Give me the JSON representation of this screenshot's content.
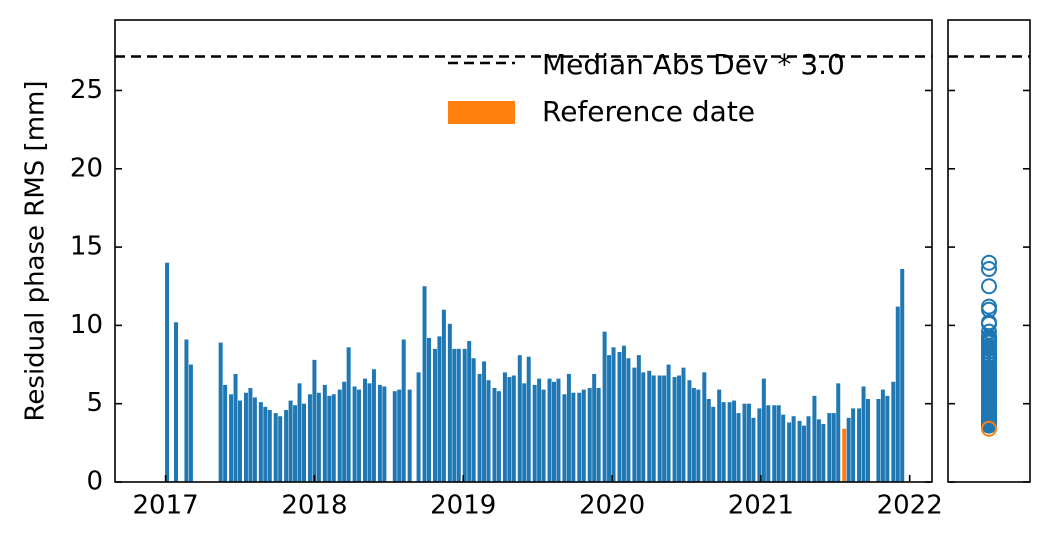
{
  "chart_data": {
    "type": "bar",
    "ylabel": "Residual phase RMS [mm]",
    "xlim": [
      2016.66,
      2022.15
    ],
    "xticks": [
      2017,
      2018,
      2019,
      2020,
      2021,
      2022
    ],
    "ylim": [
      0,
      29.5
    ],
    "yticks": [
      0,
      5,
      10,
      15,
      20,
      25
    ],
    "color": "#1f77b4",
    "x": [
      2017.01,
      2017.07,
      2017.14,
      2017.17,
      2017.37,
      2017.4,
      2017.44,
      2017.47,
      2017.5,
      2017.54,
      2017.57,
      2017.6,
      2017.64,
      2017.67,
      2017.7,
      2017.74,
      2017.77,
      2017.81,
      2017.84,
      2017.87,
      2017.9,
      2017.93,
      2017.97,
      2018.0,
      2018.03,
      2018.07,
      2018.1,
      2018.13,
      2018.17,
      2018.2,
      2018.23,
      2018.27,
      2018.3,
      2018.34,
      2018.37,
      2018.4,
      2018.44,
      2018.47,
      2018.54,
      2018.57,
      2018.6,
      2018.64,
      2018.7,
      2018.74,
      2018.77,
      2018.81,
      2018.84,
      2018.87,
      2018.91,
      2018.94,
      2018.97,
      2019.01,
      2019.04,
      2019.07,
      2019.11,
      2019.14,
      2019.17,
      2019.21,
      2019.24,
      2019.28,
      2019.31,
      2019.34,
      2019.38,
      2019.41,
      2019.44,
      2019.48,
      2019.51,
      2019.54,
      2019.58,
      2019.61,
      2019.64,
      2019.68,
      2019.71,
      2019.74,
      2019.78,
      2019.81,
      2019.85,
      2019.88,
      2019.91,
      2019.95,
      2019.98,
      2020.01,
      2020.05,
      2020.08,
      2020.11,
      2020.15,
      2020.18,
      2020.21,
      2020.25,
      2020.28,
      2020.32,
      2020.35,
      2020.38,
      2020.42,
      2020.45,
      2020.48,
      2020.52,
      2020.55,
      2020.58,
      2020.62,
      2020.65,
      2020.68,
      2020.72,
      2020.75,
      2020.79,
      2020.82,
      2020.85,
      2020.89,
      2020.92,
      2020.95,
      2020.99,
      2021.02,
      2021.05,
      2021.09,
      2021.12,
      2021.15,
      2021.19,
      2021.22,
      2021.26,
      2021.29,
      2021.32,
      2021.36,
      2021.39,
      2021.42,
      2021.46,
      2021.49,
      2021.52,
      2021.59,
      2021.62,
      2021.66,
      2021.69,
      2021.72,
      2021.79,
      2021.82,
      2021.85,
      2021.89,
      2021.92,
      2021.95
    ],
    "values": [
      14.0,
      10.2,
      9.1,
      7.5,
      8.9,
      6.2,
      5.6,
      6.9,
      5.2,
      5.7,
      6.0,
      5.4,
      5.1,
      4.8,
      4.6,
      4.4,
      4.2,
      4.6,
      5.2,
      4.9,
      6.3,
      5.0,
      5.6,
      7.8,
      5.7,
      6.2,
      5.5,
      5.6,
      5.9,
      6.4,
      8.6,
      6.1,
      5.9,
      6.6,
      6.3,
      7.2,
      6.2,
      6.1,
      5.8,
      5.9,
      9.1,
      5.9,
      7.0,
      12.5,
      9.2,
      8.5,
      9.3,
      11.0,
      10.1,
      8.5,
      8.5,
      8.5,
      9.0,
      7.9,
      6.9,
      7.7,
      6.5,
      6.0,
      5.8,
      7.0,
      6.7,
      6.8,
      8.1,
      6.3,
      8.0,
      6.2,
      6.6,
      5.9,
      6.6,
      6.4,
      6.6,
      5.6,
      6.9,
      5.7,
      5.7,
      5.9,
      6.0,
      6.9,
      6.0,
      9.6,
      8.1,
      8.6,
      8.3,
      8.7,
      7.9,
      7.3,
      8.1,
      7.0,
      7.1,
      6.8,
      6.8,
      6.8,
      7.5,
      6.7,
      6.8,
      7.3,
      6.5,
      6.0,
      5.9,
      7.0,
      5.3,
      4.8,
      5.9,
      5.1,
      5.1,
      5.2,
      4.4,
      5.0,
      5.0,
      4.1,
      4.7,
      6.6,
      4.9,
      4.9,
      4.9,
      4.3,
      3.8,
      4.2,
      3.9,
      3.6,
      4.2,
      5.5,
      4.0,
      3.7,
      4.4,
      4.4,
      6.3,
      4.1,
      4.7,
      4.7,
      6.1,
      5.3,
      5.3,
      5.9,
      5.5,
      6.4,
      11.2,
      13.6
    ],
    "reference": {
      "name": "Reference date",
      "color": "#ff7f0e",
      "x": 2021.56,
      "value": 3.4
    },
    "threshold": {
      "name": "Median Abs Dev * 3.0",
      "value": 27.17
    }
  }
}
